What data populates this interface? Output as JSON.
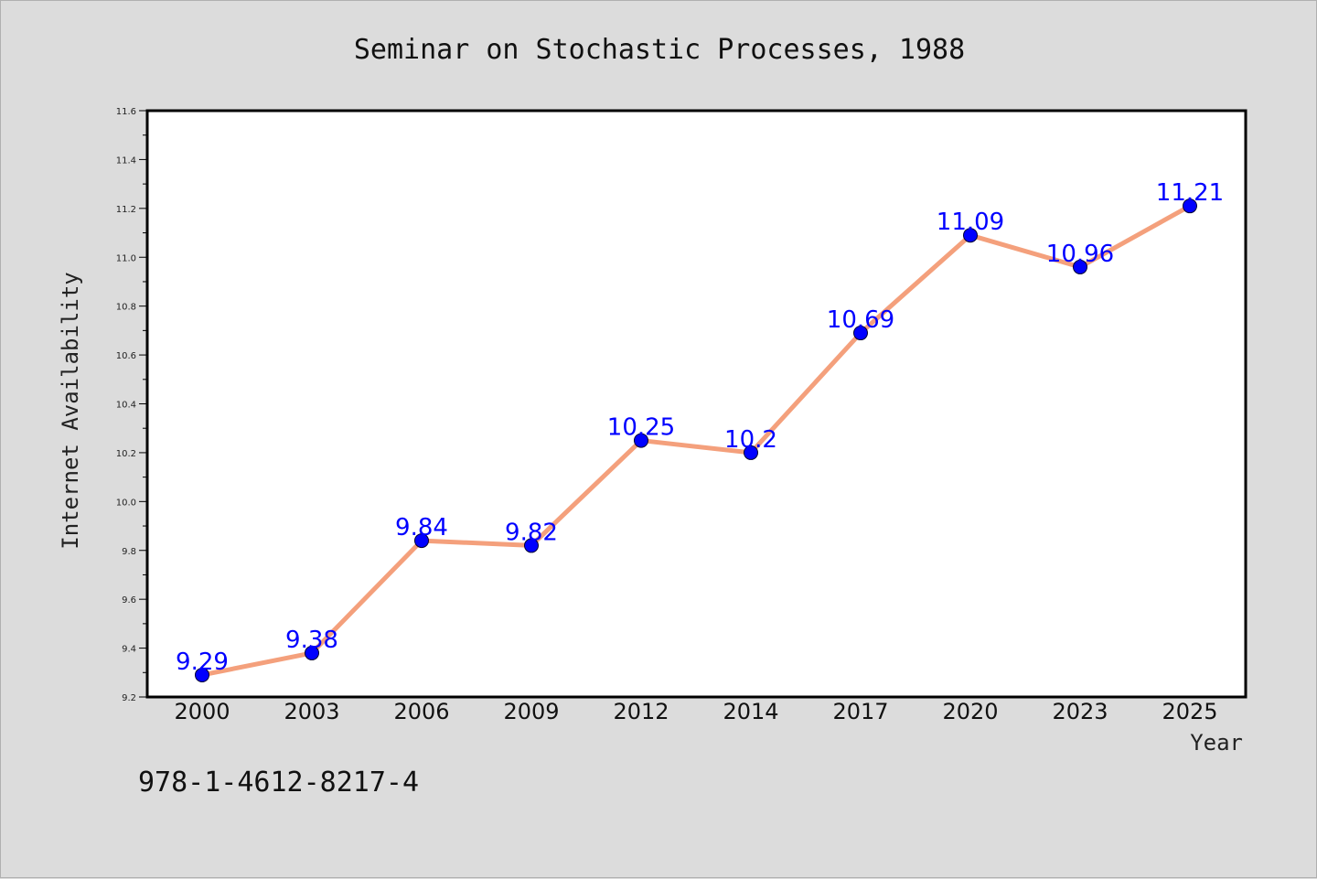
{
  "chart_data": {
    "type": "line",
    "title": "Seminar on Stochastic Processes, 1988",
    "xlabel": "Year",
    "ylabel": "Internet Availability",
    "categories": [
      "2000",
      "2003",
      "2006",
      "2009",
      "2012",
      "2014",
      "2017",
      "2020",
      "2023",
      "2025"
    ],
    "series": [
      {
        "values": [
          9.29,
          9.38,
          9.84,
          9.82,
          10.25,
          10.2,
          10.69,
          11.09,
          10.96,
          11.21
        ],
        "labels": [
          "9.29",
          "9.38",
          "9.84",
          "9.82",
          "10.25",
          "10.2",
          "10.69",
          "11.09",
          "10.96",
          "11.21"
        ],
        "line_color": "#f4a07c",
        "marker_color": "#0000ff"
      }
    ],
    "ylim": [
      9.2,
      11.6
    ],
    "yticks": [
      9.2,
      9.4,
      9.6,
      9.8,
      10.0,
      10.2,
      10.4,
      10.6,
      10.8,
      11.0,
      11.2,
      11.4,
      11.6
    ],
    "ytick_labels": [
      "9.2",
      "9.4",
      "9.6",
      "9.8",
      "10.0",
      "10.2",
      "10.4",
      "10.6",
      "10.8",
      "11.0",
      "11.2",
      "11.4",
      "11.6"
    ],
    "grid": false,
    "legend": "none"
  },
  "footer": {
    "text": "978-1-4612-8217-4"
  },
  "colors": {
    "background": "#dcdcdc",
    "plot_background": "#ffffff",
    "line": "#f4a07c",
    "marker": "#0000ff",
    "data_label": "#0000ff"
  }
}
